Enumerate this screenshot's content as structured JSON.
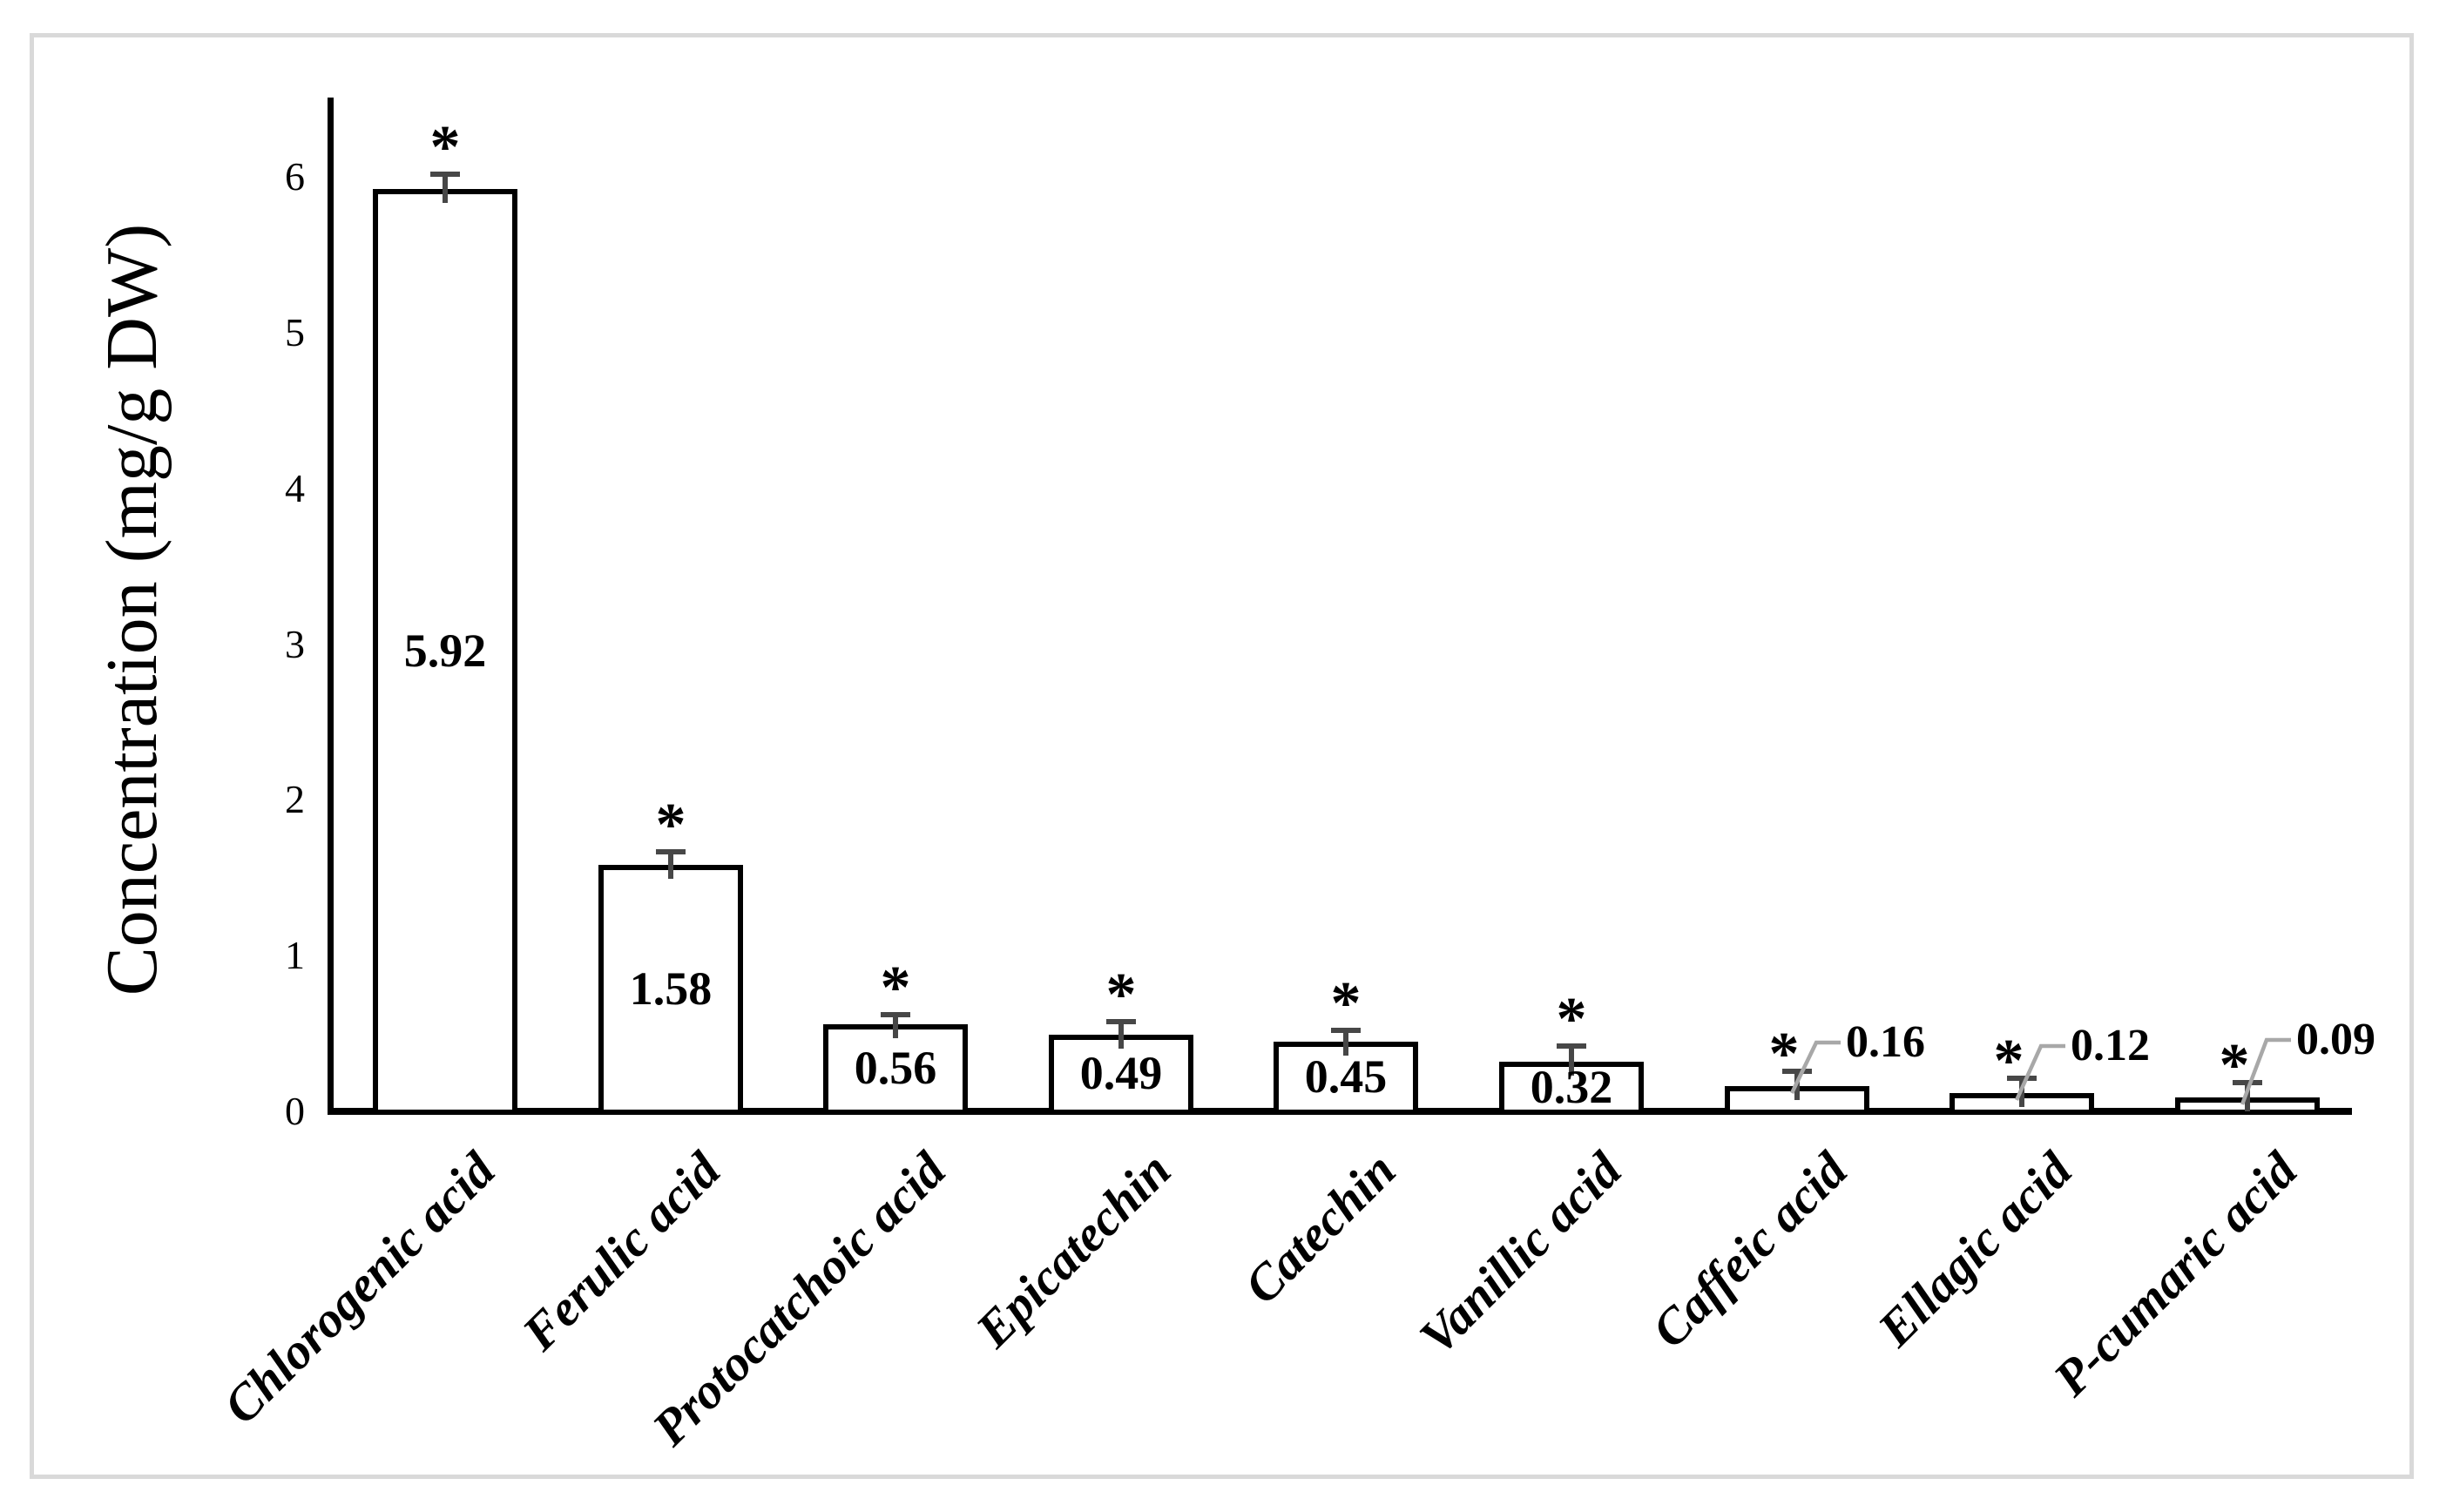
{
  "meta": {
    "background_color": "#ffffff",
    "frame_border_color": "#d9d9d9",
    "axis_color": "#000000",
    "bar_fill_color": "#ffffff",
    "bar_stroke_color": "#000000",
    "error_bar_color": "#474747",
    "leader_line_color": "#a8a8a8",
    "significance_marker": "*"
  },
  "chart_data": {
    "type": "bar",
    "title": "",
    "xlabel": "",
    "ylabel": "Concentration (mg/g DW)",
    "categories": [
      "Chlorogenic acid",
      "Ferulic acid",
      "Protocatchoic acid",
      "Epicatechin",
      "Catechin",
      "Vanillic acid",
      "Caffeic acid",
      "Ellagic acid",
      "P-cumaric acid"
    ],
    "values": [
      5.92,
      1.58,
      0.56,
      0.49,
      0.45,
      0.32,
      0.16,
      0.12,
      0.09
    ],
    "value_labels": [
      "5.92",
      "1.58",
      "0.56",
      "0.49",
      "0.45",
      "0.32",
      "0.16",
      "0.12",
      "0.09"
    ],
    "errors_upper": [
      0.11,
      0.1,
      0.08,
      0.1,
      0.09,
      0.12,
      0.11,
      0.11,
      0.11
    ],
    "significance": [
      "*",
      "*",
      "*",
      "*",
      "*",
      "*",
      "*",
      "*",
      "*"
    ],
    "label_placement": [
      "inside",
      "inside",
      "inside",
      "inside",
      "inside",
      "inside",
      "callout",
      "callout",
      "callout"
    ],
    "yticks": [
      "0",
      "1",
      "2",
      "3",
      "4",
      "5",
      "6"
    ],
    "ylim": [
      0,
      6.5
    ],
    "grid": false,
    "legend": null,
    "bar_color_description": "white bars with black outline, upper error bars, asterisk significance markers"
  }
}
